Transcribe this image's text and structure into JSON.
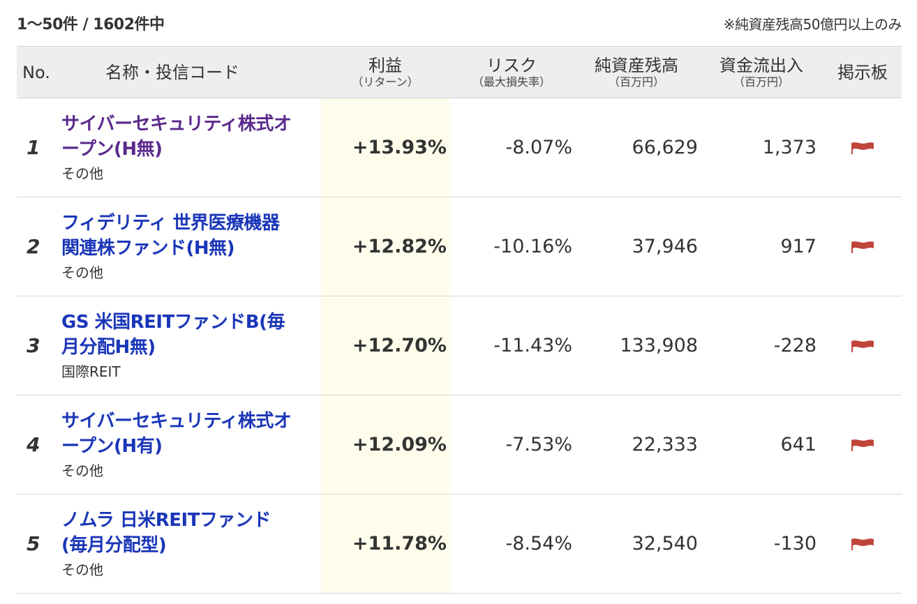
{
  "summary": {
    "count": "1〜50件 / 1602件中",
    "note": "※純資産残高50億円以上のみ"
  },
  "headers": {
    "no": "No.",
    "name": "名称・投信コード",
    "return_main": "利益",
    "return_sub": "（リターン）",
    "risk_main": "リスク",
    "risk_sub": "（最大損失率）",
    "assets_main": "純資産残高",
    "assets_sub": "（百万円）",
    "flow_main": "資金流出入",
    "flow_sub": "（百万円）",
    "board": "掲示板"
  },
  "colors": {
    "link": "#1a36b8",
    "visited_link": "#5a2a8c",
    "return_column_bg": "#fefdec",
    "header_bg": "#eeeeee",
    "flag": "#c0443a"
  },
  "rows": [
    {
      "no": "1",
      "name_line1": "サイバーセキュリティ株式オ",
      "name_line2": "ープン(H無)",
      "category": "その他",
      "return": "+13.93%",
      "risk": "-8.07%",
      "assets": "66,629",
      "flow": "1,373",
      "board_icon": "flag-icon"
    },
    {
      "no": "2",
      "name_line1": "フィデリティ 世界医療機器",
      "name_line2": "関連株ファンド(H無)",
      "category": "その他",
      "return": "+12.82%",
      "risk": "-10.16%",
      "assets": "37,946",
      "flow": "917",
      "board_icon": "flag-icon"
    },
    {
      "no": "3",
      "name_line1": "GS 米国REITファンドB(毎",
      "name_line2": "月分配H無)",
      "category": "国際REIT",
      "return": "+12.70%",
      "risk": "-11.43%",
      "assets": "133,908",
      "flow": "-228",
      "board_icon": "flag-icon"
    },
    {
      "no": "4",
      "name_line1": "サイバーセキュリティ株式オ",
      "name_line2": "ープン(H有)",
      "category": "その他",
      "return": "+12.09%",
      "risk": "-7.53%",
      "assets": "22,333",
      "flow": "641",
      "board_icon": "flag-icon"
    },
    {
      "no": "5",
      "name_line1": "ノムラ 日米REITファンド",
      "name_line2": "(毎月分配型)",
      "category": "その他",
      "return": "+11.78%",
      "risk": "-8.54%",
      "assets": "32,540",
      "flow": "-130",
      "board_icon": "flag-icon"
    }
  ]
}
